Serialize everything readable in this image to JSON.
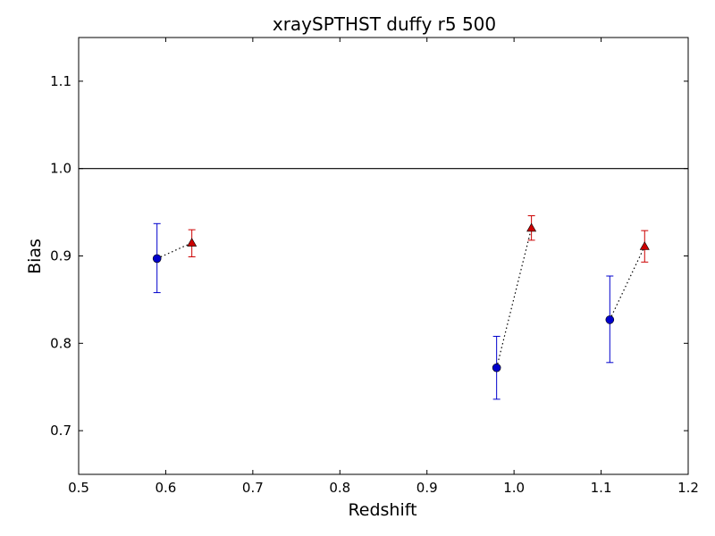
{
  "chart_data": {
    "type": "scatter",
    "title": "xraySPTHST duffy r5 500",
    "xlabel": "Redshift",
    "ylabel": "Bias",
    "xlim": [
      0.5,
      1.2
    ],
    "ylim": [
      0.65,
      1.15
    ],
    "xticks": [
      "0.5",
      "0.6",
      "0.7",
      "0.8",
      "0.9",
      "1.0",
      "1.1",
      "1.2"
    ],
    "yticks": [
      "0.7",
      "0.8",
      "0.9",
      "1.0",
      "1.1"
    ],
    "reference_line": 1.0,
    "grid": false,
    "series": [
      {
        "marker": "circle",
        "color": "#0000cc",
        "points": [
          {
            "x": 0.59,
            "y": 0.897,
            "err_low": 0.858,
            "err_high": 0.937
          },
          {
            "x": 0.98,
            "y": 0.772,
            "err_low": 0.736,
            "err_high": 0.808
          },
          {
            "x": 1.11,
            "y": 0.827,
            "err_low": 0.778,
            "err_high": 0.877
          }
        ]
      },
      {
        "marker": "triangle",
        "color": "#cc0000",
        "points": [
          {
            "x": 0.63,
            "y": 0.915,
            "err_low": 0.899,
            "err_high": 0.93
          },
          {
            "x": 1.02,
            "y": 0.932,
            "err_low": 0.918,
            "err_high": 0.946
          },
          {
            "x": 1.15,
            "y": 0.911,
            "err_low": 0.893,
            "err_high": 0.929
          }
        ]
      }
    ],
    "connectors": [
      [
        0,
        0
      ],
      [
        1,
        1
      ],
      [
        2,
        2
      ]
    ]
  }
}
